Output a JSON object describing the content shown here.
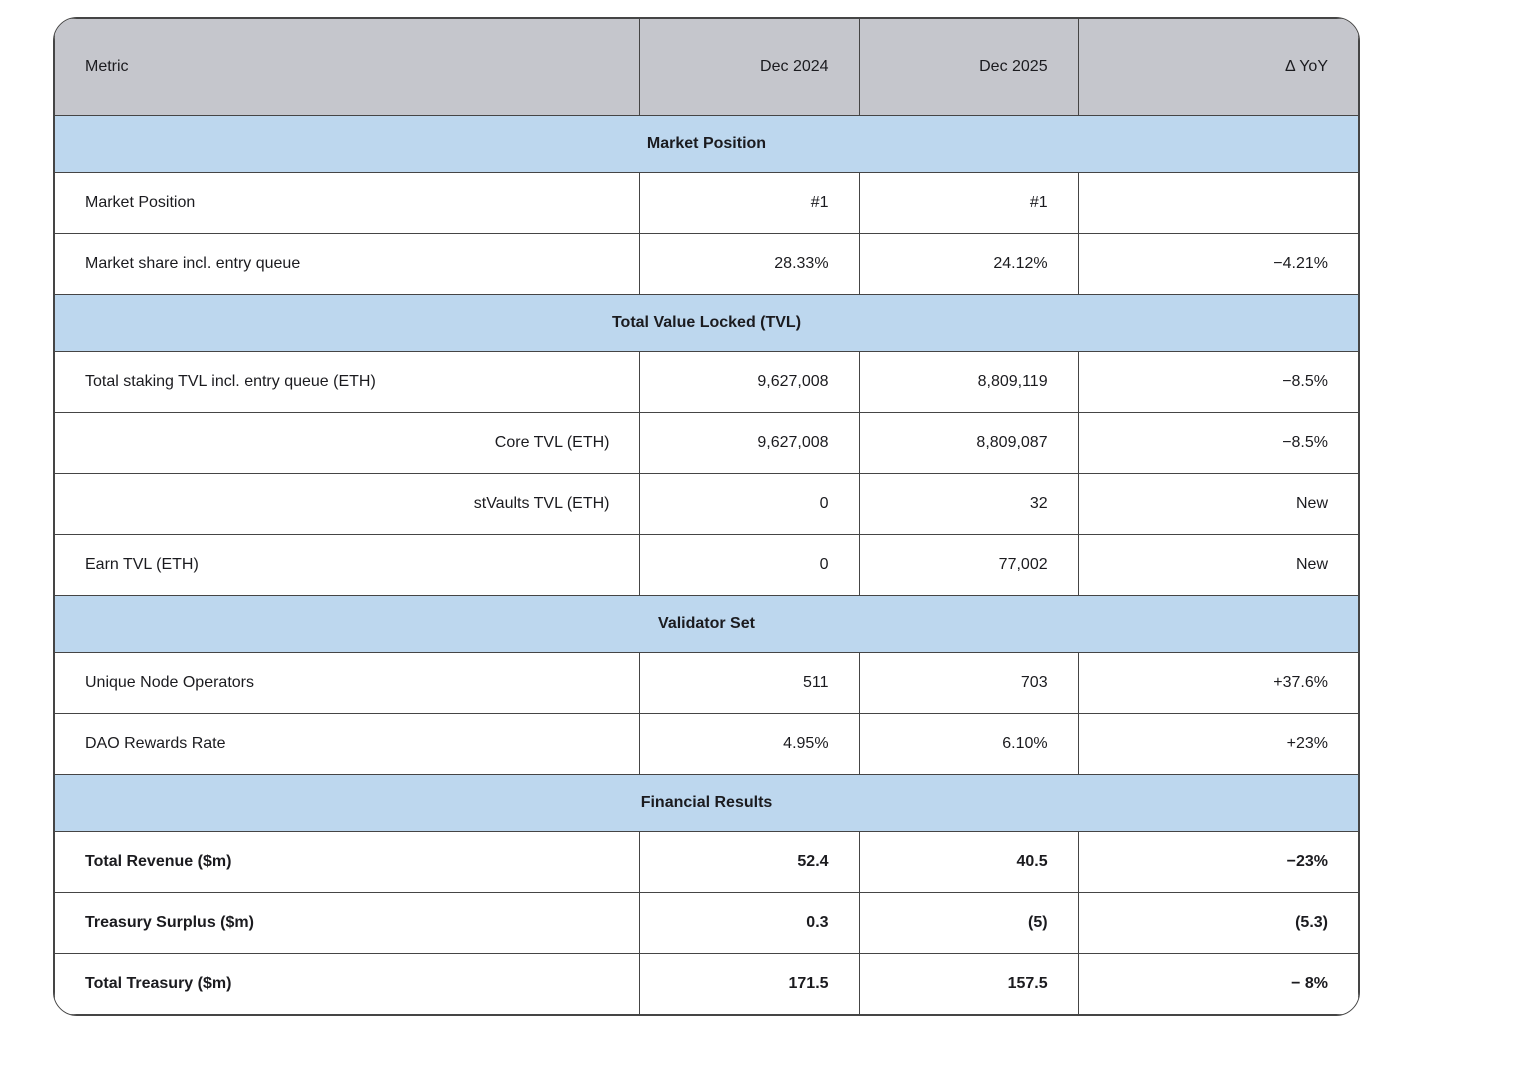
{
  "colors": {
    "header_bg": "#c5c6cc",
    "section_bg": "#bdd7ee",
    "border": "#454545"
  },
  "table": {
    "columns": [
      {
        "label": "Metric",
        "align": "left"
      },
      {
        "label": "Dec 2024",
        "align": "right"
      },
      {
        "label": "Dec 2025",
        "align": "right"
      },
      {
        "label": "Δ YoY",
        "align": "right"
      }
    ],
    "sections": [
      {
        "title": "Market Position",
        "rows": [
          {
            "metric": "Market Position",
            "metric_align": "left",
            "bold": false,
            "values": [
              "#1",
              "#1",
              ""
            ]
          },
          {
            "metric": "Market share incl. entry queue",
            "metric_align": "left",
            "bold": false,
            "values": [
              "28.33%",
              "24.12%",
              "−4.21%"
            ]
          }
        ]
      },
      {
        "title": "Total Value Locked (TVL)",
        "rows": [
          {
            "metric": "Total staking TVL incl. entry queue (ETH)",
            "metric_align": "left",
            "bold": false,
            "values": [
              "9,627,008",
              "8,809,119",
              "−8.5%"
            ]
          },
          {
            "metric": "Core TVL (ETH)",
            "metric_align": "right",
            "bold": false,
            "values": [
              "9,627,008",
              "8,809,087",
              "−8.5%"
            ]
          },
          {
            "metric": "stVaults TVL (ETH)",
            "metric_align": "right",
            "bold": false,
            "values": [
              "0",
              "32",
              "New"
            ]
          },
          {
            "metric": "Earn TVL (ETH)",
            "metric_align": "left",
            "bold": false,
            "values": [
              "0",
              "77,002",
              "New"
            ]
          }
        ]
      },
      {
        "title": "Validator Set",
        "rows": [
          {
            "metric": "Unique Node Operators",
            "metric_align": "left",
            "bold": false,
            "values": [
              "511",
              "703",
              "+37.6%"
            ]
          },
          {
            "metric": "DAO Rewards Rate",
            "metric_align": "left",
            "bold": false,
            "values": [
              "4.95%",
              "6.10%",
              "+23%"
            ]
          }
        ]
      },
      {
        "title": "Financial Results",
        "rows": [
          {
            "metric": "Total Revenue ($m)",
            "metric_align": "left",
            "bold": true,
            "values": [
              "52.4",
              "40.5",
              "−23%"
            ]
          },
          {
            "metric": "Treasury Surplus ($m)",
            "metric_align": "left",
            "bold": true,
            "values": [
              "0.3",
              "(5)",
              "(5.3)"
            ]
          },
          {
            "metric": "Total Treasury ($m)",
            "metric_align": "left",
            "bold": true,
            "values": [
              "171.5",
              "157.5",
              "− 8%"
            ]
          }
        ]
      }
    ]
  }
}
